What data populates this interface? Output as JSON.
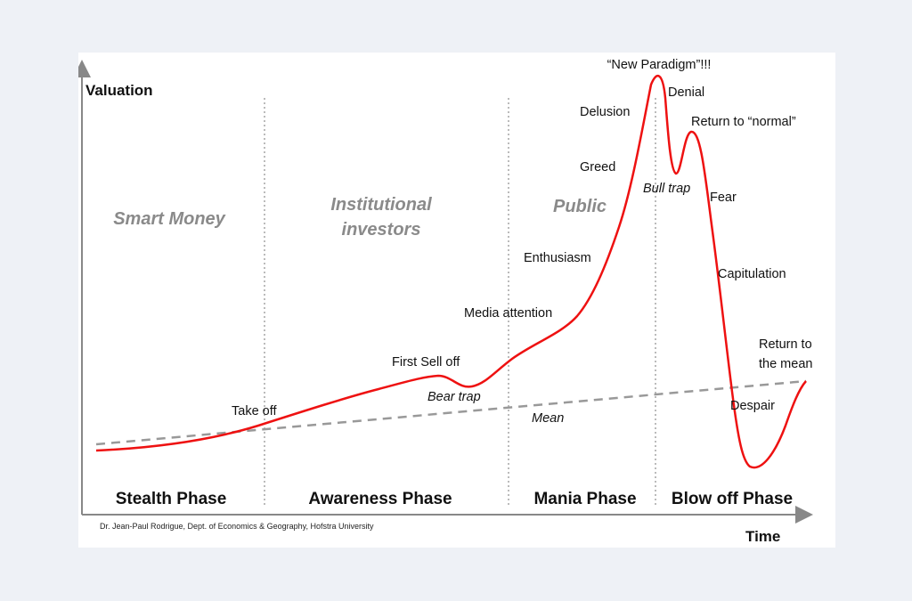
{
  "axes": {
    "y_title": "Valuation",
    "x_title": "Time"
  },
  "audiences": {
    "smart_money": "Smart Money",
    "institutional_line1": "Institutional",
    "institutional_line2": "investors",
    "public": "Public"
  },
  "phases": {
    "stealth": "Stealth Phase",
    "awareness": "Awareness Phase",
    "mania": "Mania Phase",
    "blow_off": "Blow off Phase"
  },
  "stages": {
    "take_off": "Take off",
    "first_sell_off": "First Sell off",
    "bear_trap": "Bear trap",
    "mean": "Mean",
    "media_attention": "Media attention",
    "enthusiasm": "Enthusiasm",
    "greed": "Greed",
    "delusion": "Delusion",
    "new_paradigm": "“New Paradigm”!!!",
    "denial": "Denial",
    "bull_trap": "Bull trap",
    "return_to_normal": "Return to “normal”",
    "fear": "Fear",
    "capitulation": "Capitulation",
    "despair": "Despair",
    "return_to_mean_line1": "Return to",
    "return_to_mean_line2": "the mean"
  },
  "credit": "Dr. Jean-Paul Rodrigue, Dept. of Economics & Geography, Hofstra University",
  "colors": {
    "curve": "#ee1111",
    "mean_line": "#999999",
    "audience_text": "#8a8a8a",
    "axes": "#888888"
  }
}
